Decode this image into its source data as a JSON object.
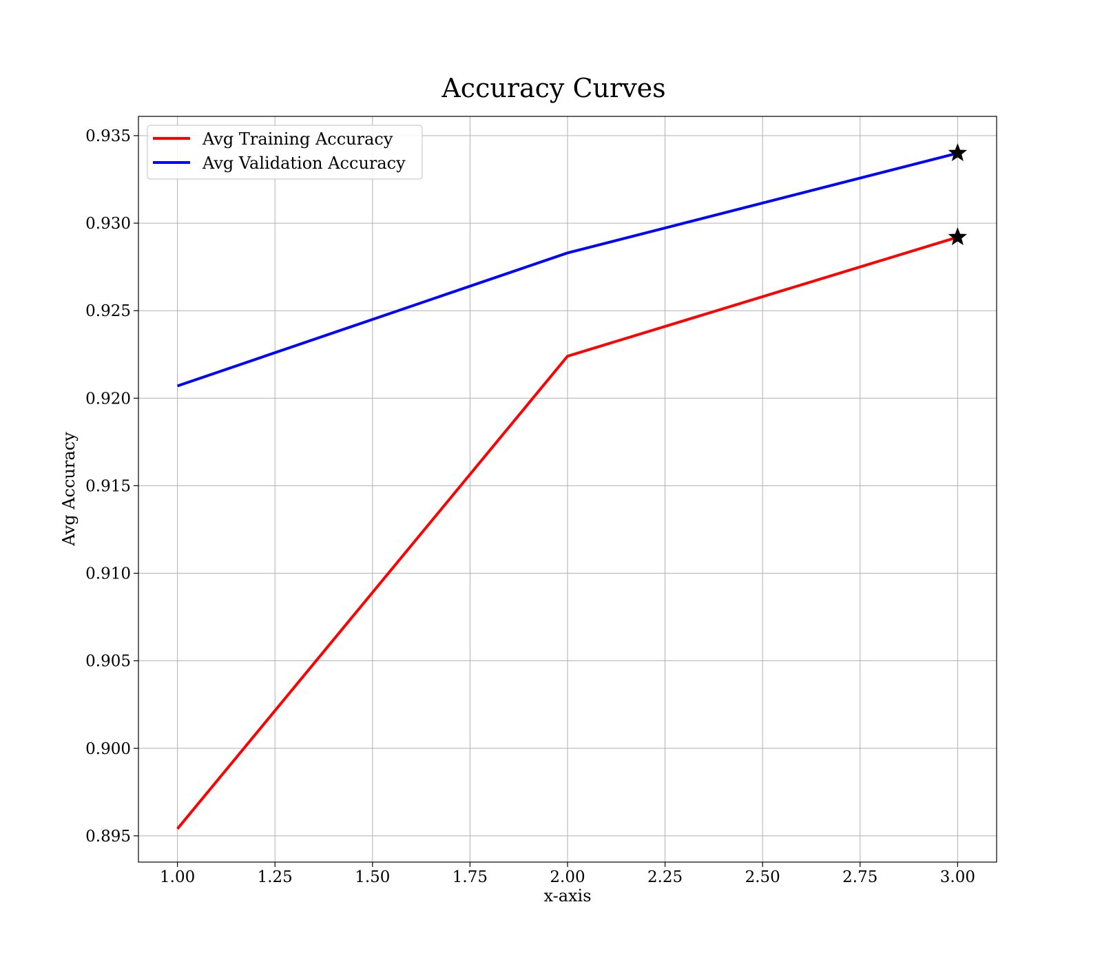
{
  "chart_data": {
    "type": "line",
    "title": "Accuracy Curves",
    "xlabel": "x-axis",
    "ylabel": "Avg Accuracy",
    "xlim": [
      0.9,
      3.1
    ],
    "ylim": [
      0.8935,
      0.9361
    ],
    "xticks": [
      1.0,
      1.25,
      1.5,
      1.75,
      2.0,
      2.25,
      2.5,
      2.75,
      3.0
    ],
    "xtick_labels": [
      "1.00",
      "1.25",
      "1.50",
      "1.75",
      "2.00",
      "2.25",
      "2.50",
      "2.75",
      "3.00"
    ],
    "yticks": [
      0.895,
      0.9,
      0.905,
      0.91,
      0.915,
      0.92,
      0.925,
      0.93,
      0.935
    ],
    "ytick_labels": [
      "0.895",
      "0.900",
      "0.905",
      "0.910",
      "0.915",
      "0.920",
      "0.925",
      "0.930",
      "0.935"
    ],
    "grid": true,
    "legend_position": "top-left",
    "x": [
      1,
      2,
      3
    ],
    "series": [
      {
        "name": "Avg Training Accuracy",
        "color": "#ff0000",
        "values": [
          0.8954,
          0.9224,
          0.9292
        ]
      },
      {
        "name": "Avg Validation Accuracy",
        "color": "#0000ff",
        "values": [
          0.9207,
          0.9283,
          0.934
        ]
      }
    ],
    "markers": [
      {
        "shape": "star",
        "color": "#000000",
        "x": 3,
        "y": 0.9292,
        "series": "Avg Training Accuracy"
      },
      {
        "shape": "star",
        "color": "#000000",
        "x": 3,
        "y": 0.934,
        "series": "Avg Validation Accuracy"
      }
    ]
  }
}
